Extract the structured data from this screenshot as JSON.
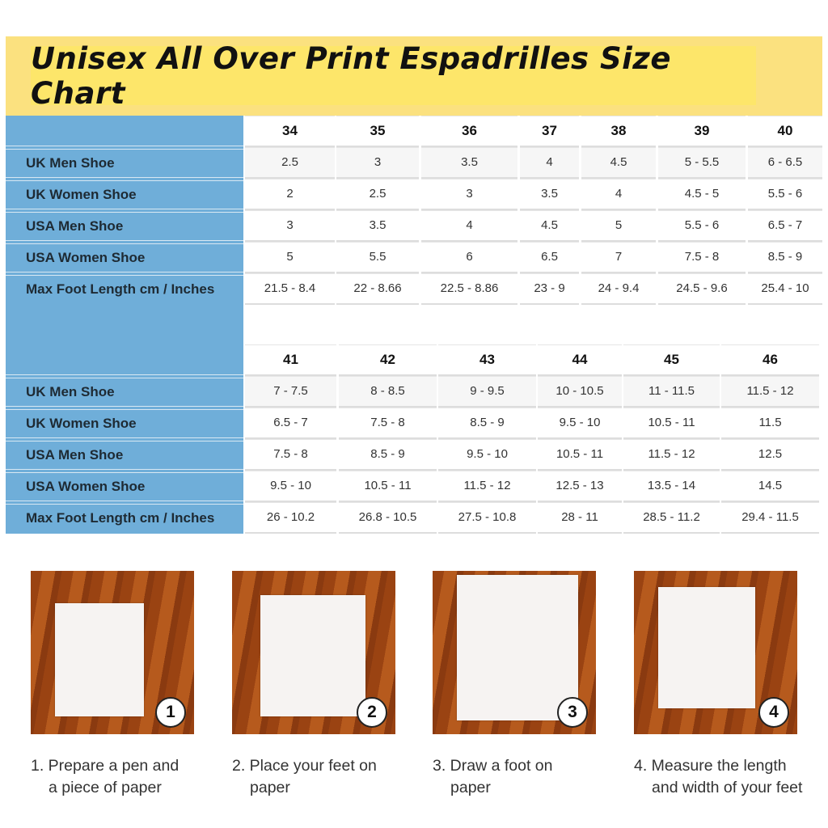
{
  "title": "Unisex All Over Print Espadrilles Size Chart",
  "colors": {
    "header_bg": "#fde66a",
    "label_column": "#6faed9"
  },
  "row_labels": [
    "UK Men Shoe",
    "UK Women Shoe",
    "USA Men Shoe",
    "USA Women Shoe",
    "Max Foot Length cm / Inches"
  ],
  "table1": {
    "sizes": [
      "34",
      "35",
      "36",
      "37",
      "38",
      "39",
      "40"
    ],
    "rows": [
      [
        "2.5",
        "3",
        "3.5",
        "4",
        "4.5",
        "5 - 5.5",
        "6 - 6.5"
      ],
      [
        "2",
        "2.5",
        "3",
        "3.5",
        "4",
        "4.5 - 5",
        "5.5 - 6"
      ],
      [
        "3",
        "3.5",
        "4",
        "4.5",
        "5",
        "5.5 - 6",
        "6.5 - 7"
      ],
      [
        "5",
        "5.5",
        "6",
        "6.5",
        "7",
        "7.5 - 8",
        "8.5 - 9"
      ],
      [
        "21.5 - 8.4",
        "22 - 8.66",
        "22.5 - 8.86",
        "23 - 9",
        "24 - 9.4",
        "24.5 - 9.6",
        "25.4 - 10"
      ]
    ]
  },
  "table2": {
    "sizes": [
      "41",
      "42",
      "43",
      "44",
      "45",
      "46"
    ],
    "rows": [
      [
        "7 - 7.5",
        "8 - 8.5",
        "9 - 9.5",
        "10 - 10.5",
        "11 - 11.5",
        "11.5 - 12"
      ],
      [
        "6.5 - 7",
        "7.5 - 8",
        "8.5 - 9",
        "9.5 - 10",
        "10.5 - 11",
        "11.5"
      ],
      [
        "7.5 - 8",
        "8.5 - 9",
        "9.5 - 10",
        "10.5 - 11",
        "11.5 - 12",
        "12.5"
      ],
      [
        "9.5 - 10",
        "10.5 - 11",
        "11.5 - 12",
        "12.5 - 13",
        "13.5 - 14",
        "14.5"
      ],
      [
        "26 - 10.2",
        "26.8 - 10.5",
        "27.5 - 10.8",
        "28 - 11",
        "28.5 - 11.2",
        "29.4 - 11.5"
      ]
    ]
  },
  "steps": [
    {
      "badge": "1",
      "line1": "1. Prepare a pen and",
      "line2": "a piece of paper"
    },
    {
      "badge": "2",
      "line1": "2. Place your feet on",
      "line2": "paper"
    },
    {
      "badge": "3",
      "line1": "3. Draw a foot on",
      "line2": "paper"
    },
    {
      "badge": "4",
      "line1": "4. Measure the length",
      "line2": "and width of your feet"
    }
  ]
}
